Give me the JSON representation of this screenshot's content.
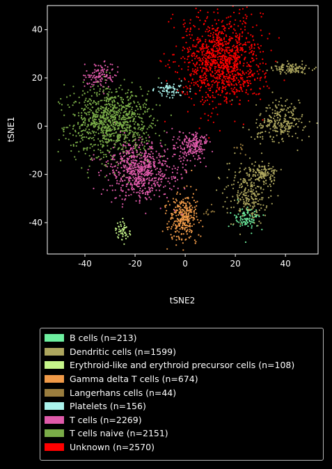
{
  "chart_data": {
    "type": "scatter",
    "xlabel": "tSNE2",
    "ylabel": "tSNE1",
    "xlim": [
      -55,
      53
    ],
    "ylim": [
      -53,
      50
    ],
    "xticks": [
      -40,
      -20,
      0,
      20,
      40
    ],
    "yticks": [
      40,
      20,
      0,
      -20,
      -40
    ],
    "grid": false,
    "legend_position": "below",
    "background": "#000000",
    "series": [
      {
        "name": "B cells (n=213)",
        "color": "#6ef0a0",
        "count": 213,
        "clusters": [
          {
            "cx": 25,
            "cy": -38,
            "sx": 2.5,
            "sy": 2.5,
            "w": 1
          }
        ]
      },
      {
        "name": "Dendritic cells (n=1599)",
        "color": "#ada65e",
        "count": 1599,
        "clusters": [
          {
            "cx": 38,
            "cy": 2,
            "sx": 5,
            "sy": 4,
            "w": 0.35
          },
          {
            "cx": 25,
            "cy": -28,
            "sx": 4,
            "sy": 6,
            "w": 0.35
          },
          {
            "cx": 42,
            "cy": 24,
            "sx": 4,
            "sy": 1.2,
            "w": 0.15
          },
          {
            "cx": 31,
            "cy": -20,
            "sx": 3,
            "sy": 2,
            "w": 0.15
          }
        ]
      },
      {
        "name": "Erythroid-like and erythroid precursor cells (n=108)",
        "color": "#c6f58a",
        "count": 108,
        "clusters": [
          {
            "cx": -25,
            "cy": -43,
            "sx": 1.5,
            "sy": 2.5,
            "w": 1
          }
        ]
      },
      {
        "name": "Gamma delta T cells (n=674)",
        "color": "#f09a48",
        "count": 674,
        "clusters": [
          {
            "cx": -1,
            "cy": -38,
            "sx": 3,
            "sy": 5,
            "w": 1
          }
        ]
      },
      {
        "name": "Langerhans cells (n=44)",
        "color": "#9a7d3e",
        "count": 44,
        "clusters": [
          {
            "cx": 22,
            "cy": -9,
            "sx": 1,
            "sy": 1,
            "w": 0.6
          },
          {
            "cx": 10,
            "cy": -35,
            "sx": 1.5,
            "sy": 1,
            "w": 0.4
          }
        ]
      },
      {
        "name": "Platelets (n=156)",
        "color": "#aaf3ec",
        "count": 156,
        "clusters": [
          {
            "cx": -6,
            "cy": 15,
            "sx": 3,
            "sy": 1.5,
            "w": 1
          }
        ]
      },
      {
        "name": "T cells (n=2269)",
        "color": "#e05aaa",
        "count": 2269,
        "clusters": [
          {
            "cx": -18,
            "cy": -18,
            "sx": 7,
            "sy": 6,
            "w": 0.7
          },
          {
            "cx": -34,
            "cy": 21,
            "sx": 3,
            "sy": 2.5,
            "w": 0.1
          },
          {
            "cx": 3,
            "cy": -8,
            "sx": 3,
            "sy": 3,
            "w": 0.2
          }
        ]
      },
      {
        "name": "T cells naive (n=2151)",
        "color": "#7aac48",
        "count": 2151,
        "clusters": [
          {
            "cx": -30,
            "cy": 2,
            "sx": 8,
            "sy": 7,
            "w": 1
          }
        ]
      },
      {
        "name": "Unknown (n=2570)",
        "color": "#ff0000",
        "count": 2570,
        "clusters": [
          {
            "cx": 15,
            "cy": 27,
            "sx": 8,
            "sy": 9,
            "w": 1
          }
        ]
      }
    ]
  }
}
